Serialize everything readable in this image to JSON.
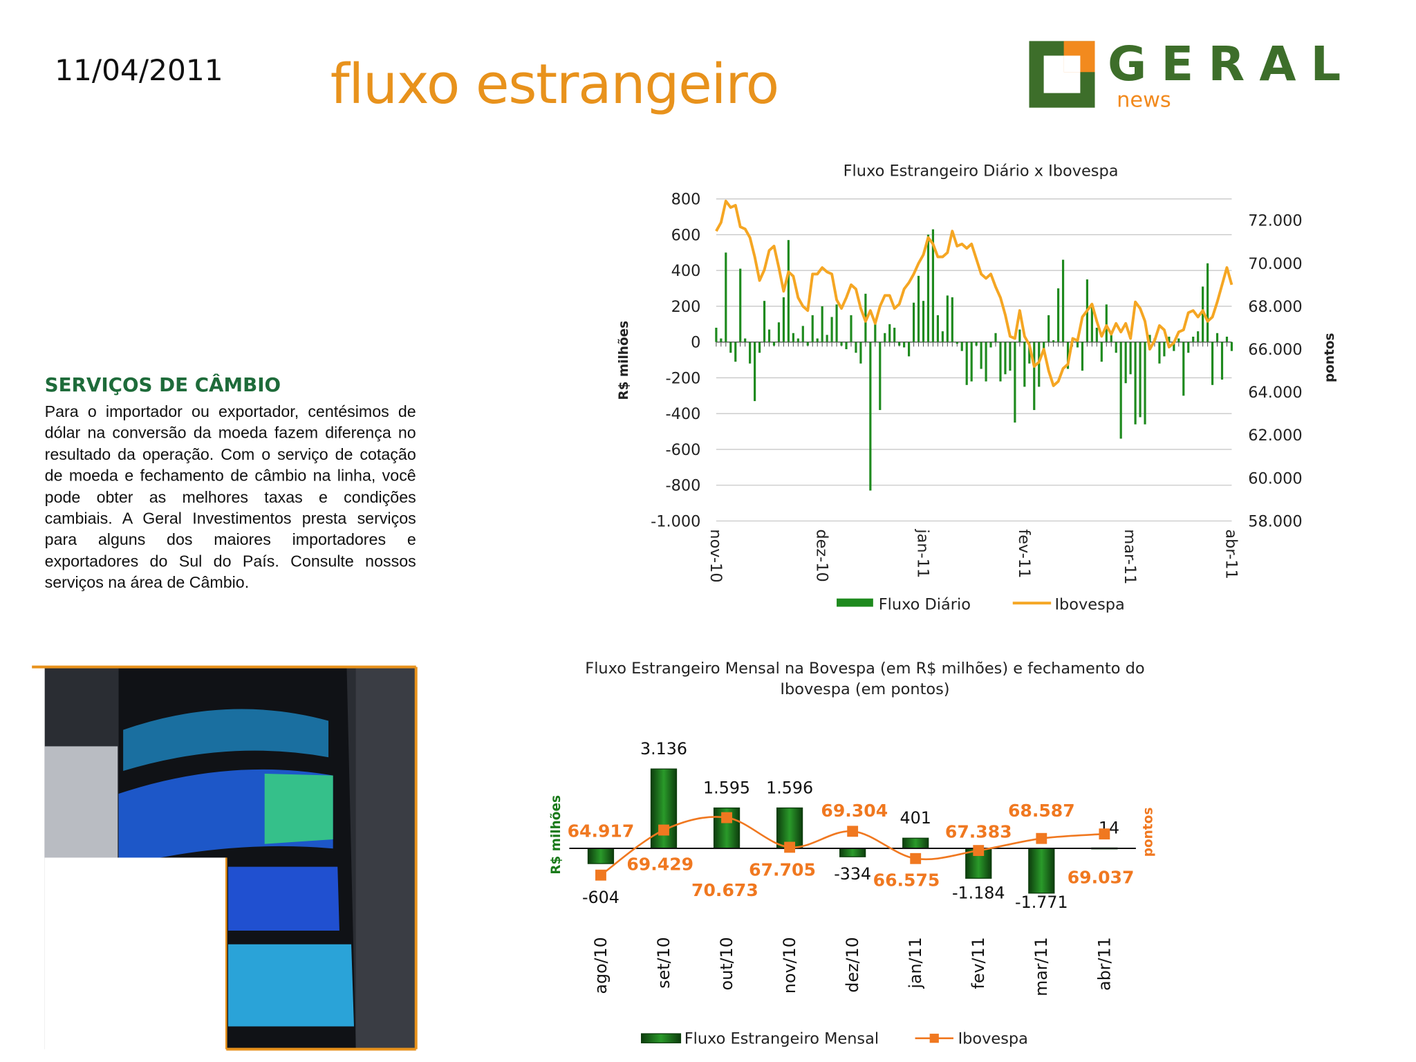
{
  "header": {
    "date": "11/04/2011",
    "title": "fluxo estrangeiro",
    "logo": "GERAL",
    "logo_sub": "news"
  },
  "section": {
    "heading": "SERVIÇOS DE CÂMBIO",
    "body": "Para o importador ou exportador, centésimos de dólar na conversão da moeda fazem diferença no resultado da operação. Com o serviço de cotação de moeda e fechamento de câmbio na linha, você pode obter as melhores taxas e condições cambiais. A Geral Investimentos presta serviços para alguns dos maiores importadores e exportadores do Sul do País. Consulte nossos serviços na área de Câmbio."
  },
  "chart_data": [
    {
      "type": "combo",
      "title": "Fluxo Estrangeiro Diário x Ibovespa",
      "ylabel": "R$ milhões",
      "y2label": "pontos",
      "categories": [
        "nov-10",
        null,
        null,
        null,
        null,
        null,
        null,
        null,
        null,
        null,
        null,
        null,
        null,
        null,
        null,
        null,
        null,
        null,
        null,
        null,
        null,
        null,
        "dez-10",
        null,
        null,
        null,
        null,
        null,
        null,
        null,
        null,
        null,
        null,
        null,
        null,
        null,
        null,
        null,
        null,
        null,
        null,
        null,
        null,
        "jan-11",
        null,
        null,
        null,
        null,
        null,
        null,
        null,
        null,
        null,
        null,
        null,
        null,
        null,
        null,
        null,
        null,
        null,
        null,
        null,
        null,
        "fev-11",
        null,
        null,
        null,
        null,
        null,
        null,
        null,
        null,
        null,
        null,
        null,
        null,
        null,
        null,
        null,
        null,
        null,
        null,
        null,
        null,
        null,
        "mar-11",
        null,
        null,
        null,
        null,
        null,
        null,
        null,
        null,
        null,
        null,
        null,
        null,
        null,
        null,
        null,
        null,
        null,
        null,
        null,
        null,
        "abr-11"
      ],
      "series": [
        {
          "name": "Fluxo Diário",
          "color": "#1e8a1e",
          "mark": "bar",
          "values": [
            80,
            20,
            500,
            -60,
            -110,
            410,
            20,
            -120,
            -330,
            -60,
            230,
            70,
            -20,
            110,
            250,
            570,
            50,
            20,
            90,
            -20,
            150,
            20,
            200,
            40,
            140,
            210,
            -20,
            -40,
            150,
            -60,
            -120,
            270,
            -830,
            100,
            -380,
            50,
            100,
            80,
            -20,
            -30,
            -80,
            220,
            370,
            230,
            600,
            630,
            150,
            60,
            260,
            250,
            -10,
            -50,
            -240,
            -220,
            -20,
            -150,
            -220,
            -30,
            50,
            -220,
            -180,
            -160,
            -450,
            70,
            -250,
            -120,
            -380,
            -250,
            -60,
            150,
            10,
            300,
            460,
            -150,
            20,
            -30,
            -160,
            350,
            200,
            80,
            -110,
            210,
            40,
            -60,
            -540,
            -230,
            -180,
            -460,
            -420,
            -460,
            40,
            20,
            -120,
            -80,
            30,
            -50,
            20,
            -300,
            -60,
            30,
            60,
            310,
            440,
            -240,
            50,
            -210,
            30,
            -50
          ]
        },
        {
          "name": "Ibovespa",
          "color": "#f5a623",
          "mark": "line",
          "axis": "y2",
          "values": [
            71500,
            71900,
            72900,
            72600,
            72700,
            71700,
            71600,
            71200,
            70300,
            69200,
            69700,
            70600,
            70800,
            69800,
            68700,
            69600,
            69400,
            68400,
            68000,
            67800,
            69500,
            69500,
            69800,
            69600,
            69500,
            68300,
            67900,
            68400,
            69000,
            68800,
            67900,
            67300,
            67800,
            67200,
            68000,
            68500,
            68500,
            67900,
            68100,
            68800,
            69100,
            69500,
            70000,
            70400,
            71200,
            70900,
            70300,
            70300,
            70500,
            71500,
            70800,
            70900,
            70700,
            70900,
            70200,
            69500,
            69300,
            69500,
            68900,
            68400,
            67600,
            66600,
            66500,
            67800,
            66600,
            66200,
            65200,
            65400,
            66000,
            65000,
            64300,
            64500,
            65100,
            65300,
            66500,
            66400,
            67500,
            67800,
            68100,
            67300,
            66600,
            67100,
            66700,
            67200,
            66800,
            67200,
            66500,
            68200,
            67900,
            67300,
            66000,
            66400,
            67100,
            66900,
            66100,
            66300,
            66800,
            66900,
            67700,
            67800,
            67500,
            67800,
            67300,
            67500,
            68200,
            69000,
            69800,
            69000
          ]
        }
      ],
      "ylim": [
        -1000,
        800
      ],
      "yticks": [
        800,
        600,
        400,
        200,
        0,
        -200,
        -400,
        -600,
        -800,
        {
          "value": -1000,
          "label": "-1.000"
        }
      ],
      "y2lim": [
        58000,
        73000
      ],
      "y2ticks": [
        {
          "value": 72000,
          "label": "72.000"
        },
        {
          "value": 70000,
          "label": "70.000"
        },
        {
          "value": 68000,
          "label": "68.000"
        },
        {
          "value": 66000,
          "label": "66.000"
        },
        {
          "value": 64000,
          "label": "64.000"
        },
        {
          "value": 62000,
          "label": "62.000"
        },
        {
          "value": 60000,
          "label": "60.000"
        },
        {
          "value": 58000,
          "label": "58.000"
        }
      ],
      "grid": true,
      "legend": "bottom"
    },
    {
      "type": "combo",
      "title": "Fluxo Estrangeiro Mensal na Bovespa (em R$ milhões) e fechamento do Ibovespa (em pontos)",
      "ylabel": "R$ milhões",
      "y2label": "pontos",
      "categories": [
        "ago/10",
        "set/10",
        "out/10",
        "nov/10",
        "dez/10",
        "jan/11",
        "fev/11",
        "mar/11",
        "abr/11"
      ],
      "series": [
        {
          "name": "Fluxo Estrangeiro Mensal",
          "color": "#1a7a1a",
          "mark": "bar",
          "values": [
            -604,
            3136,
            1595,
            1596,
            -334,
            401,
            -1184,
            -1771,
            14
          ],
          "value_labels": [
            "-604",
            "3.136",
            "1.595",
            "1.596",
            "-334",
            "401",
            "-1.184",
            "-1.771",
            "14"
          ]
        },
        {
          "name": "Ibovespa",
          "color": "#f07820",
          "mark": "line",
          "axis": "y2",
          "values": [
            64917,
            69429,
            70673,
            67705,
            69304,
            66575,
            67383,
            68587,
            69037
          ],
          "value_labels": [
            "64.917",
            "69.429",
            "70.673",
            "67.705",
            "69.304",
            "66.575",
            "67.383",
            "68.587",
            "69.037"
          ]
        }
      ],
      "ylim": [
        -3000,
        4500
      ],
      "y2lim": [
        60000,
        79000
      ],
      "grid": false,
      "legend": "bottom"
    }
  ]
}
